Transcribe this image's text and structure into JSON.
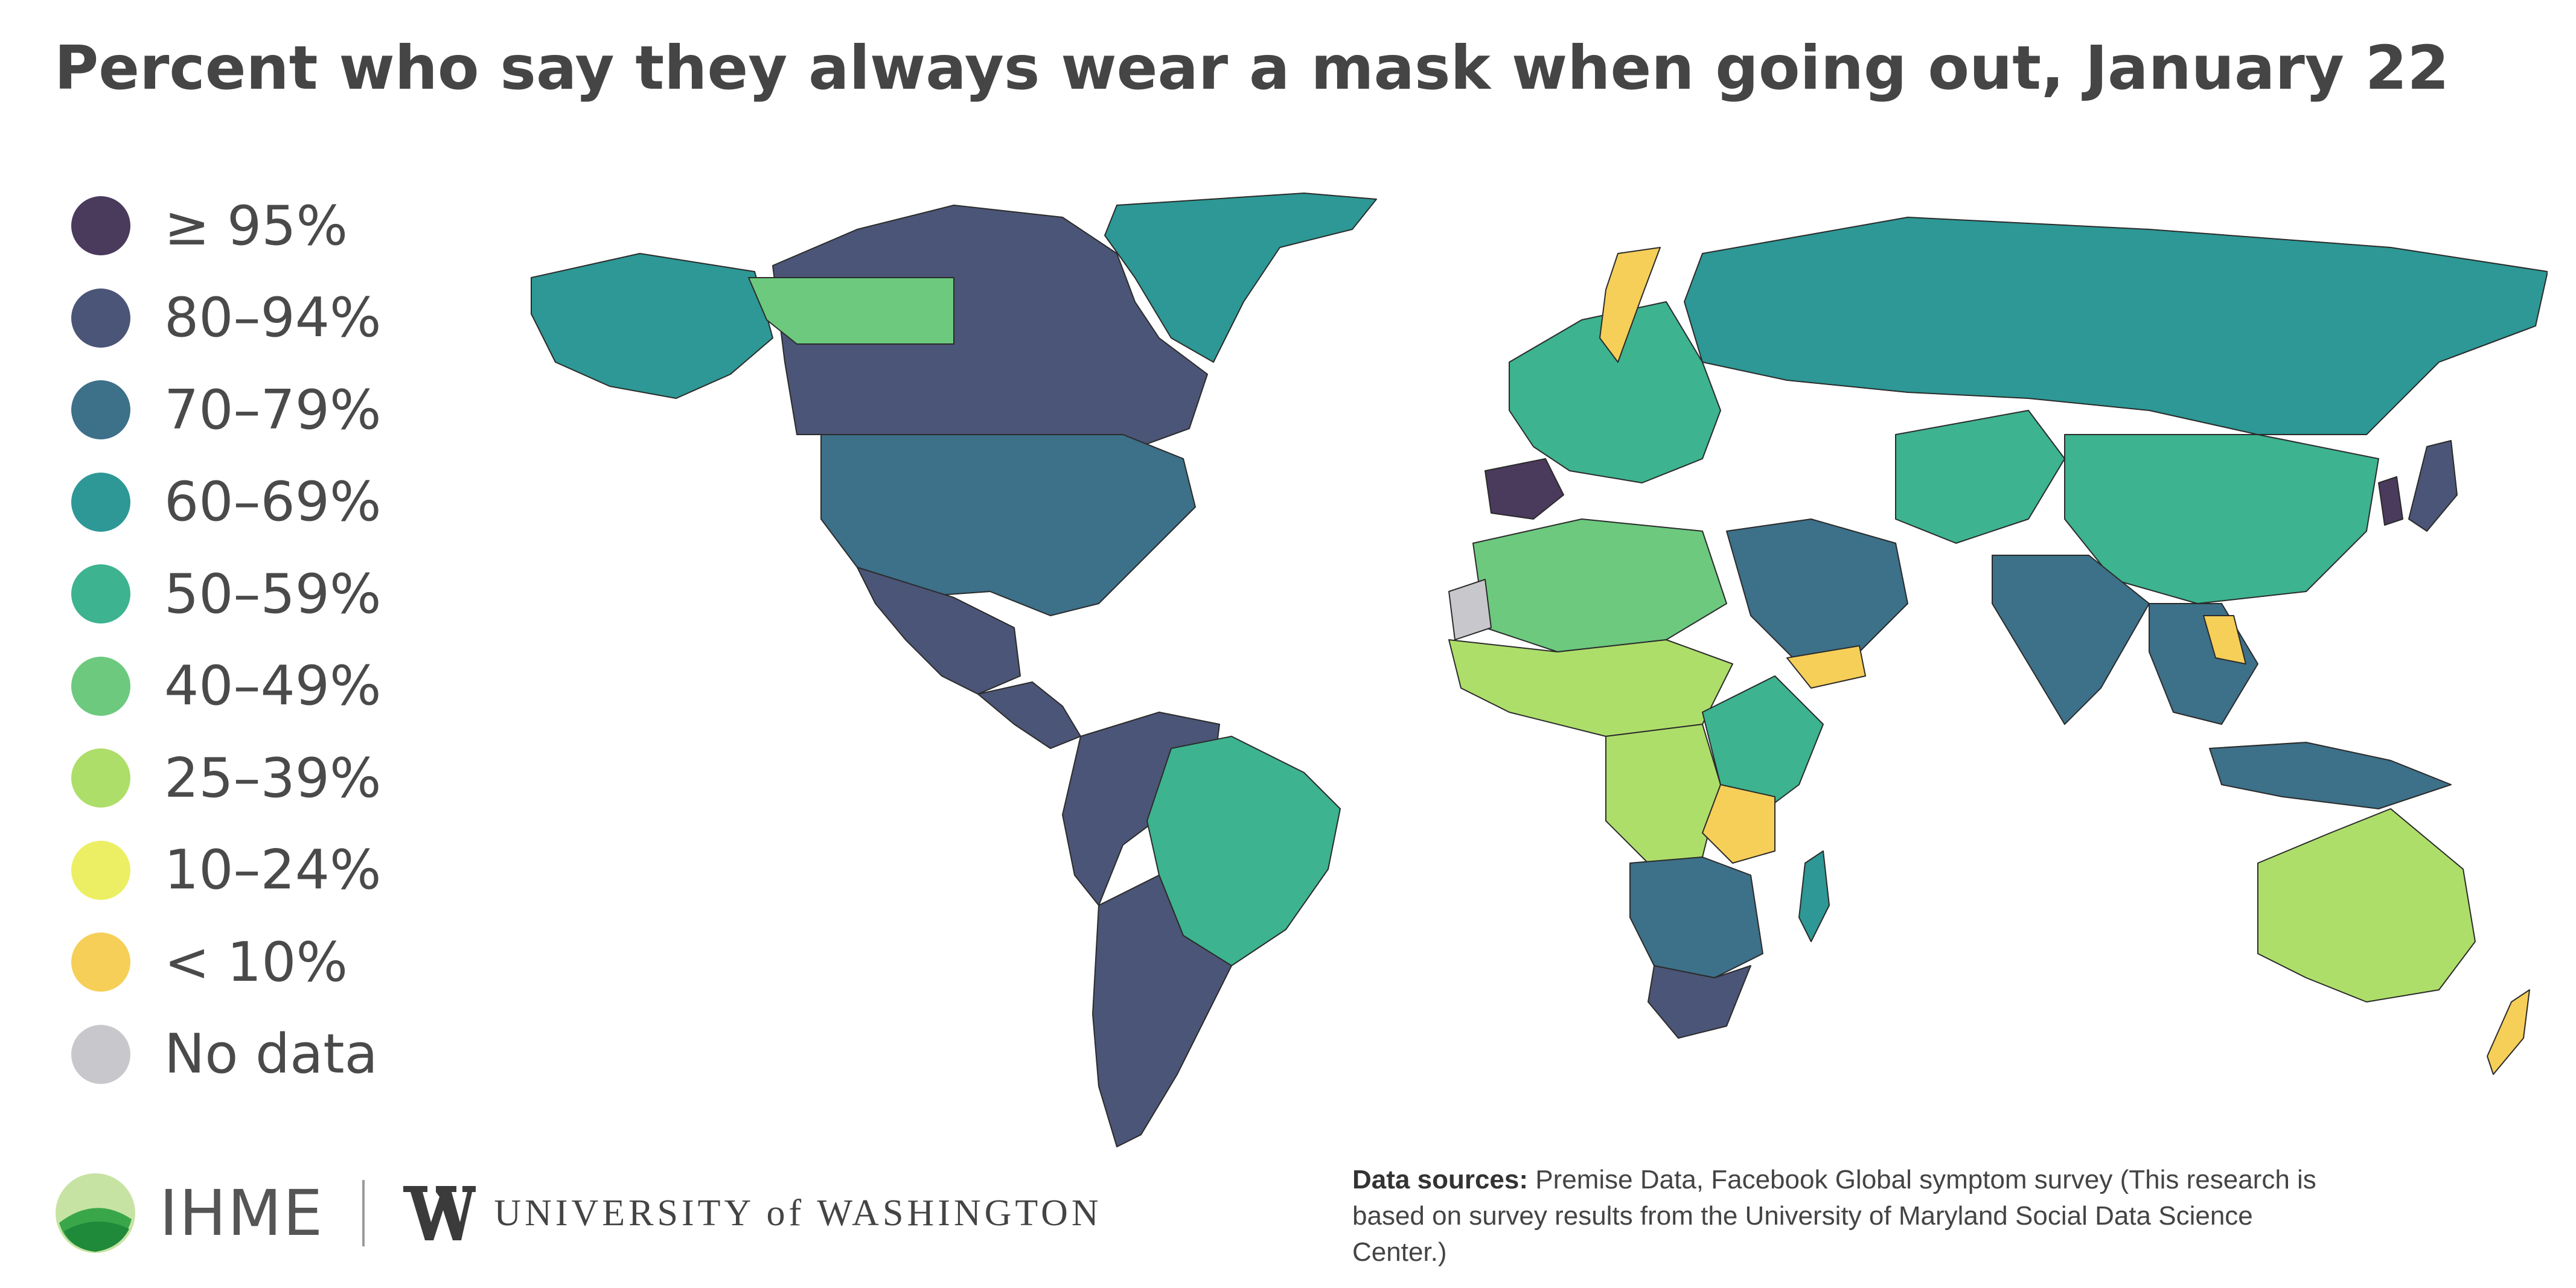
{
  "title": "Percent who say they always wear a mask when going out, January 22",
  "legend": [
    {
      "label": "≥ 95%",
      "color": "#4a3a5c"
    },
    {
      "label": "80–94%",
      "color": "#4b5577"
    },
    {
      "label": "70–79%",
      "color": "#3d7089"
    },
    {
      "label": "60–69%",
      "color": "#2d9895"
    },
    {
      "label": "50–59%",
      "color": "#3db38f"
    },
    {
      "label": "40–49%",
      "color": "#6cc97e"
    },
    {
      "label": "25–39%",
      "color": "#aede6a"
    },
    {
      "label": "10–24%",
      "color": "#ecef63"
    },
    {
      "label": "< 10%",
      "color": "#f6cf58"
    },
    {
      "label": "No data",
      "color": "#c8c8cc"
    }
  ],
  "footer": {
    "ihme_label": "IHME",
    "uw_label": "UNIVERSITY of WASHINGTON",
    "sources_heading": "Data sources:",
    "sources_text": "Premise Data, Facebook Global symptom survey (This research is based on survey results from the University of Maryland Social Data Science Center.)"
  },
  "map_regions": [
    {
      "name": "Greenland",
      "color": "#2d9895"
    },
    {
      "name": "Canada",
      "color": "#4b5577"
    },
    {
      "name": "Alaska",
      "color": "#2d9895"
    },
    {
      "name": "Yukon",
      "color": "#6cc97e"
    },
    {
      "name": "United States",
      "color": "#3d7089"
    },
    {
      "name": "Mexico",
      "color": "#4b5577"
    },
    {
      "name": "Central America",
      "color": "#4b5577"
    },
    {
      "name": "Colombia/Venezuela/Peru",
      "color": "#4b5577"
    },
    {
      "name": "Brazil",
      "color": "#3db38f"
    },
    {
      "name": "Argentina/Chile",
      "color": "#4b5577"
    },
    {
      "name": "Russia",
      "color": "#2d9895"
    },
    {
      "name": "Europe",
      "color": "#3db38f"
    },
    {
      "name": "Spain",
      "color": "#4a3a5c"
    },
    {
      "name": "Sweden",
      "color": "#f6cf58"
    },
    {
      "name": "North Africa",
      "color": "#6cc97e"
    },
    {
      "name": "Sahel",
      "color": "#aede6a"
    },
    {
      "name": "Western Sahara",
      "color": "#c8c8cc"
    },
    {
      "name": "Central Africa",
      "color": "#aede6a"
    },
    {
      "name": "East Africa",
      "color": "#3db38f"
    },
    {
      "name": "Tanzania",
      "color": "#f6cf58"
    },
    {
      "name": "Southern Africa",
      "color": "#3d7089"
    },
    {
      "name": "South Africa",
      "color": "#4b5577"
    },
    {
      "name": "Madagascar",
      "color": "#2d9895"
    },
    {
      "name": "Middle East",
      "color": "#3d7089"
    },
    {
      "name": "Yemen",
      "color": "#f6cf58"
    },
    {
      "name": "Central Asia",
      "color": "#3db38f"
    },
    {
      "name": "China",
      "color": "#3db38f"
    },
    {
      "name": "India",
      "color": "#3d7089"
    },
    {
      "name": "Southeast Asia",
      "color": "#3d7089"
    },
    {
      "name": "Laos",
      "color": "#f6cf58"
    },
    {
      "name": "Korea",
      "color": "#4a3a5c"
    },
    {
      "name": "Japan",
      "color": "#4b5577"
    },
    {
      "name": "Indonesia",
      "color": "#3d7089"
    },
    {
      "name": "Australia",
      "color": "#aede6a"
    },
    {
      "name": "New Zealand",
      "color": "#f6cf58"
    }
  ]
}
